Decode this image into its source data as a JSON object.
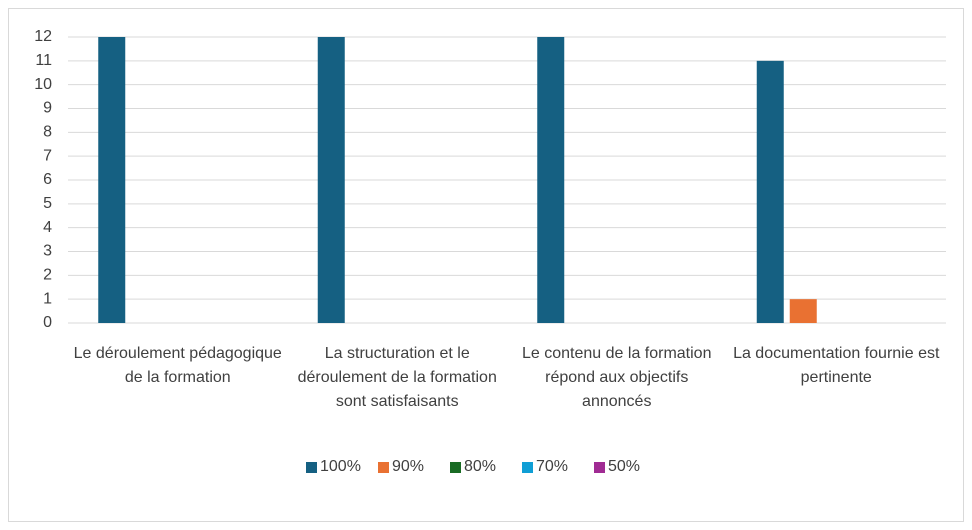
{
  "chart_data": {
    "type": "bar",
    "categories": [
      "Le déroulement pédagogique de la formation",
      "La structuration et le déroulement de la formation sont satisfaisants",
      "Le contenu de la formation répond aux objectifs annoncés",
      "La documentation fournie est pertinente"
    ],
    "series": [
      {
        "name": "100%",
        "color": "#156082",
        "values": [
          12,
          12,
          12,
          11
        ]
      },
      {
        "name": "90%",
        "color": "#e97132",
        "values": [
          0,
          0,
          0,
          1
        ]
      },
      {
        "name": "80%",
        "color": "#196b24",
        "values": [
          0,
          0,
          0,
          0
        ]
      },
      {
        "name": "70%",
        "color": "#0f9ed5",
        "values": [
          0,
          0,
          0,
          0
        ]
      },
      {
        "name": "50%",
        "color": "#a02b93",
        "values": [
          0,
          0,
          0,
          0
        ]
      }
    ],
    "ylim": [
      0,
      12
    ],
    "yticks": [
      0,
      1,
      2,
      3,
      4,
      5,
      6,
      7,
      8,
      9,
      10,
      11,
      12
    ],
    "grid": true,
    "legend": "bottom"
  }
}
